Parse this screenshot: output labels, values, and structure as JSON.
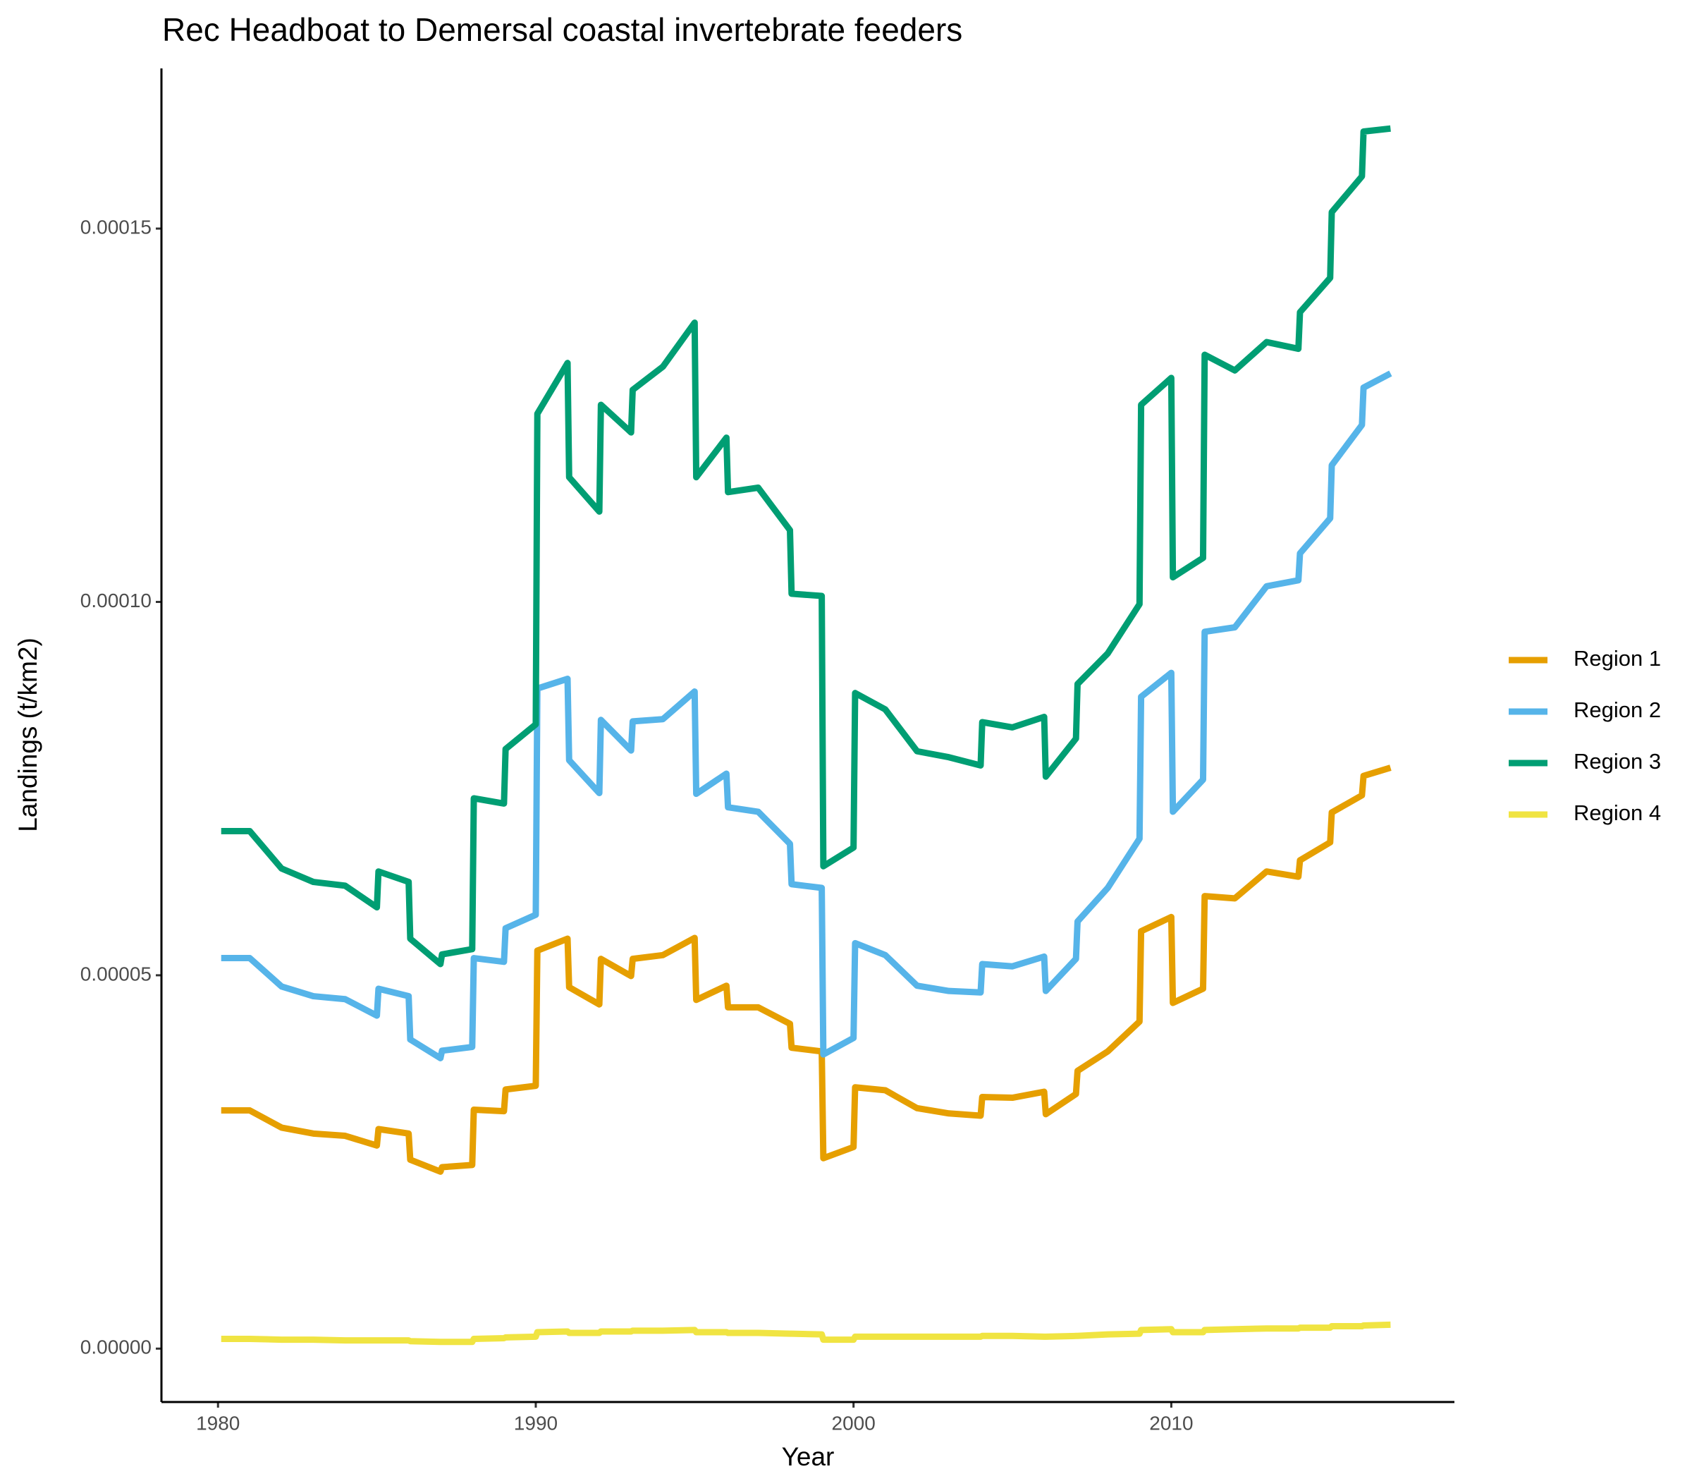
{
  "chart_data": {
    "type": "line",
    "title": "Rec Headboat to Demersal coastal invertebrate feeders",
    "x_label": "Year",
    "y_label": "Landings (t/km2)",
    "x": [
      1980.1,
      1981,
      1982,
      1983,
      1984,
      1985,
      1985.05,
      1986,
      1986.05,
      1987,
      1987.05,
      1988,
      1988.05,
      1989,
      1989.05,
      1990,
      1990.05,
      1991,
      1991.05,
      1992,
      1992.05,
      1993,
      1993.05,
      1994,
      1995,
      1995.05,
      1996,
      1996.05,
      1997,
      1998,
      1998.05,
      1999,
      1999.05,
      2000,
      2000.05,
      2001,
      2002,
      2003,
      2004,
      2004.05,
      2005,
      2006,
      2006.05,
      2007,
      2007.05,
      2008,
      2009,
      2009.05,
      2010,
      2010.05,
      2011,
      2011.05,
      2012,
      2013,
      2014,
      2014.05,
      2015,
      2015.05,
      2016,
      2016.05,
      2016.9
    ],
    "series": [
      {
        "name": "Region 1",
        "color": "#e69f00",
        "values": [
          3.19e-05,
          3.19e-05,
          2.96e-05,
          2.88e-05,
          2.85e-05,
          2.72e-05,
          2.94e-05,
          2.88e-05,
          2.53e-05,
          2.37e-05,
          2.43e-05,
          2.46e-05,
          3.2e-05,
          3.18e-05,
          3.47e-05,
          3.52e-05,
          5.33e-05,
          5.49e-05,
          4.84e-05,
          4.61e-05,
          5.22e-05,
          4.99e-05,
          5.22e-05,
          5.27e-05,
          5.5e-05,
          4.67e-05,
          4.86e-05,
          4.57e-05,
          4.57e-05,
          4.35e-05,
          4.03e-05,
          3.98e-05,
          2.55e-05,
          2.7e-05,
          3.5e-05,
          3.46e-05,
          3.22e-05,
          3.15e-05,
          3.12e-05,
          3.37e-05,
          3.36e-05,
          3.44e-05,
          3.14e-05,
          3.41e-05,
          3.72e-05,
          3.98e-05,
          4.38e-05,
          5.59e-05,
          5.78e-05,
          4.63e-05,
          4.82e-05,
          6.06e-05,
          6.03e-05,
          6.39e-05,
          6.32e-05,
          6.54e-05,
          6.78e-05,
          7.18e-05,
          7.41e-05,
          7.67e-05,
          7.78e-05
        ]
      },
      {
        "name": "Region 2",
        "color": "#56b4e9",
        "values": [
          5.23e-05,
          5.23e-05,
          4.85e-05,
          4.72e-05,
          4.68e-05,
          4.46e-05,
          4.82e-05,
          4.72e-05,
          4.14e-05,
          3.89e-05,
          3.99e-05,
          4.04e-05,
          5.23e-05,
          5.18e-05,
          5.63e-05,
          5.81e-05,
          8.84e-05,
          8.97e-05,
          7.88e-05,
          7.44e-05,
          8.42e-05,
          8.01e-05,
          8.4e-05,
          8.43e-05,
          8.8e-05,
          7.43e-05,
          7.7e-05,
          7.25e-05,
          7.19e-05,
          6.76e-05,
          6.22e-05,
          6.17e-05,
          3.94e-05,
          4.16e-05,
          5.43e-05,
          5.27e-05,
          4.86e-05,
          4.79e-05,
          4.77e-05,
          5.15e-05,
          5.12e-05,
          5.25e-05,
          4.79e-05,
          5.22e-05,
          5.72e-05,
          6.17e-05,
          6.83e-05,
          8.73e-05,
          9.05e-05,
          7.19e-05,
          7.62e-05,
          9.6e-05,
          9.66e-05,
          0.0001021,
          0.0001029,
          0.0001065,
          0.0001112,
          0.0001183,
          0.0001237,
          0.0001287,
          0.0001306
        ]
      },
      {
        "name": "Region 3",
        "color": "#009e73",
        "values": [
          6.93e-05,
          6.93e-05,
          6.43e-05,
          6.25e-05,
          6.2e-05,
          5.91e-05,
          6.39e-05,
          6.25e-05,
          5.49e-05,
          5.15e-05,
          5.28e-05,
          5.35e-05,
          7.37e-05,
          7.3e-05,
          8.03e-05,
          8.36e-05,
          0.0001252,
          0.000132,
          0.0001167,
          0.0001121,
          0.0001264,
          0.0001227,
          0.0001284,
          0.0001315,
          0.0001374,
          0.0001167,
          0.000122,
          0.0001147,
          0.0001153,
          0.0001096,
          0.0001011,
          0.0001008,
          6.46e-05,
          6.71e-05,
          8.78e-05,
          8.56e-05,
          8e-05,
          7.92e-05,
          7.81e-05,
          8.39e-05,
          8.32e-05,
          8.46e-05,
          7.66e-05,
          8.17e-05,
          8.9e-05,
          9.31e-05,
          9.97e-05,
          0.0001264,
          0.00013,
          0.0001033,
          0.0001059,
          0.0001331,
          0.000131,
          0.0001348,
          0.0001339,
          0.0001388,
          0.0001434,
          0.0001522,
          0.000157,
          0.000163,
          0.0001634
        ]
      },
      {
        "name": "Region 4",
        "color": "#f0e442",
        "values": [
          1.3e-06,
          1.3e-06,
          1.2e-06,
          1.2e-06,
          1.1e-06,
          1.1e-06,
          1.1e-06,
          1.1e-06,
          1e-06,
          9e-07,
          9e-07,
          9e-07,
          1.3e-06,
          1.4e-06,
          1.5e-06,
          1.6e-06,
          2.2e-06,
          2.3e-06,
          2.1e-06,
          2.1e-06,
          2.3e-06,
          2.3e-06,
          2.4e-06,
          2.4e-06,
          2.5e-06,
          2.2e-06,
          2.2e-06,
          2.1e-06,
          2.1e-06,
          2e-06,
          2e-06,
          1.9e-06,
          1.2e-06,
          1.2e-06,
          1.6e-06,
          1.6e-06,
          1.6e-06,
          1.6e-06,
          1.6e-06,
          1.7e-06,
          1.7e-06,
          1.6e-06,
          1.6e-06,
          1.7e-06,
          1.7e-06,
          1.9e-06,
          2e-06,
          2.5e-06,
          2.6e-06,
          2.2e-06,
          2.2e-06,
          2.5e-06,
          2.6e-06,
          2.7e-06,
          2.7e-06,
          2.8e-06,
          2.8e-06,
          3e-06,
          3e-06,
          3.1e-06,
          3.2e-06
        ]
      }
    ],
    "xlim": [
      1978.22,
      2018.91
    ],
    "xticks": [
      1980,
      1990,
      2000,
      2010
    ],
    "ylim": [
      -7.15e-06,
      0.00017145
    ],
    "yticks": [
      {
        "value": 0,
        "label": "0.00000"
      },
      {
        "value": 5e-05,
        "label": "0.00005"
      },
      {
        "value": 0.0001,
        "label": "0.00010"
      },
      {
        "value": 0.00015,
        "label": "0.00015"
      }
    ],
    "grid": false,
    "legend": "right"
  }
}
